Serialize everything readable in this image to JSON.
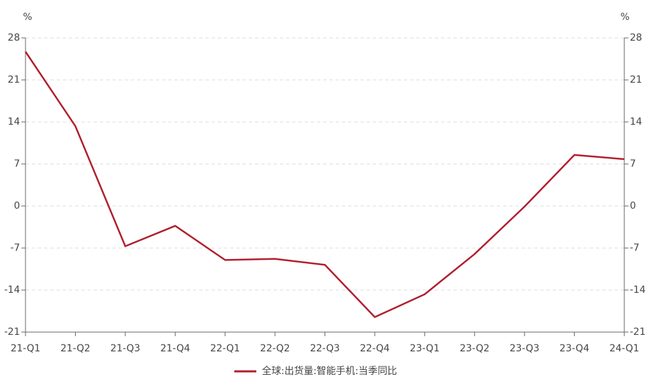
{
  "chart_data": {
    "type": "line",
    "ylabel": "%",
    "y2label": "%",
    "categories": [
      "21-Q1",
      "21-Q2",
      "21-Q3",
      "21-Q4",
      "22-Q1",
      "22-Q2",
      "22-Q3",
      "22-Q4",
      "23-Q1",
      "23-Q2",
      "23-Q3",
      "23-Q4",
      "24-Q1"
    ],
    "series": [
      {
        "name": "全球:出货量:智能手机:当季同比",
        "color": "#b01f2e",
        "values": [
          25.7,
          13.3,
          -6.7,
          -3.3,
          -9.0,
          -8.8,
          -9.8,
          -18.5,
          -14.7,
          -8.0,
          -0.1,
          8.5,
          7.8
        ]
      }
    ],
    "ylim": [
      -21,
      28
    ],
    "yticks": [
      -21,
      -14,
      -7,
      0,
      7,
      14,
      21,
      28
    ],
    "y2lim": [
      -21,
      28
    ],
    "y2ticks": [
      -21,
      -14,
      -7,
      0,
      7,
      14,
      21,
      28
    ],
    "grid": true,
    "legend": "bottom"
  }
}
